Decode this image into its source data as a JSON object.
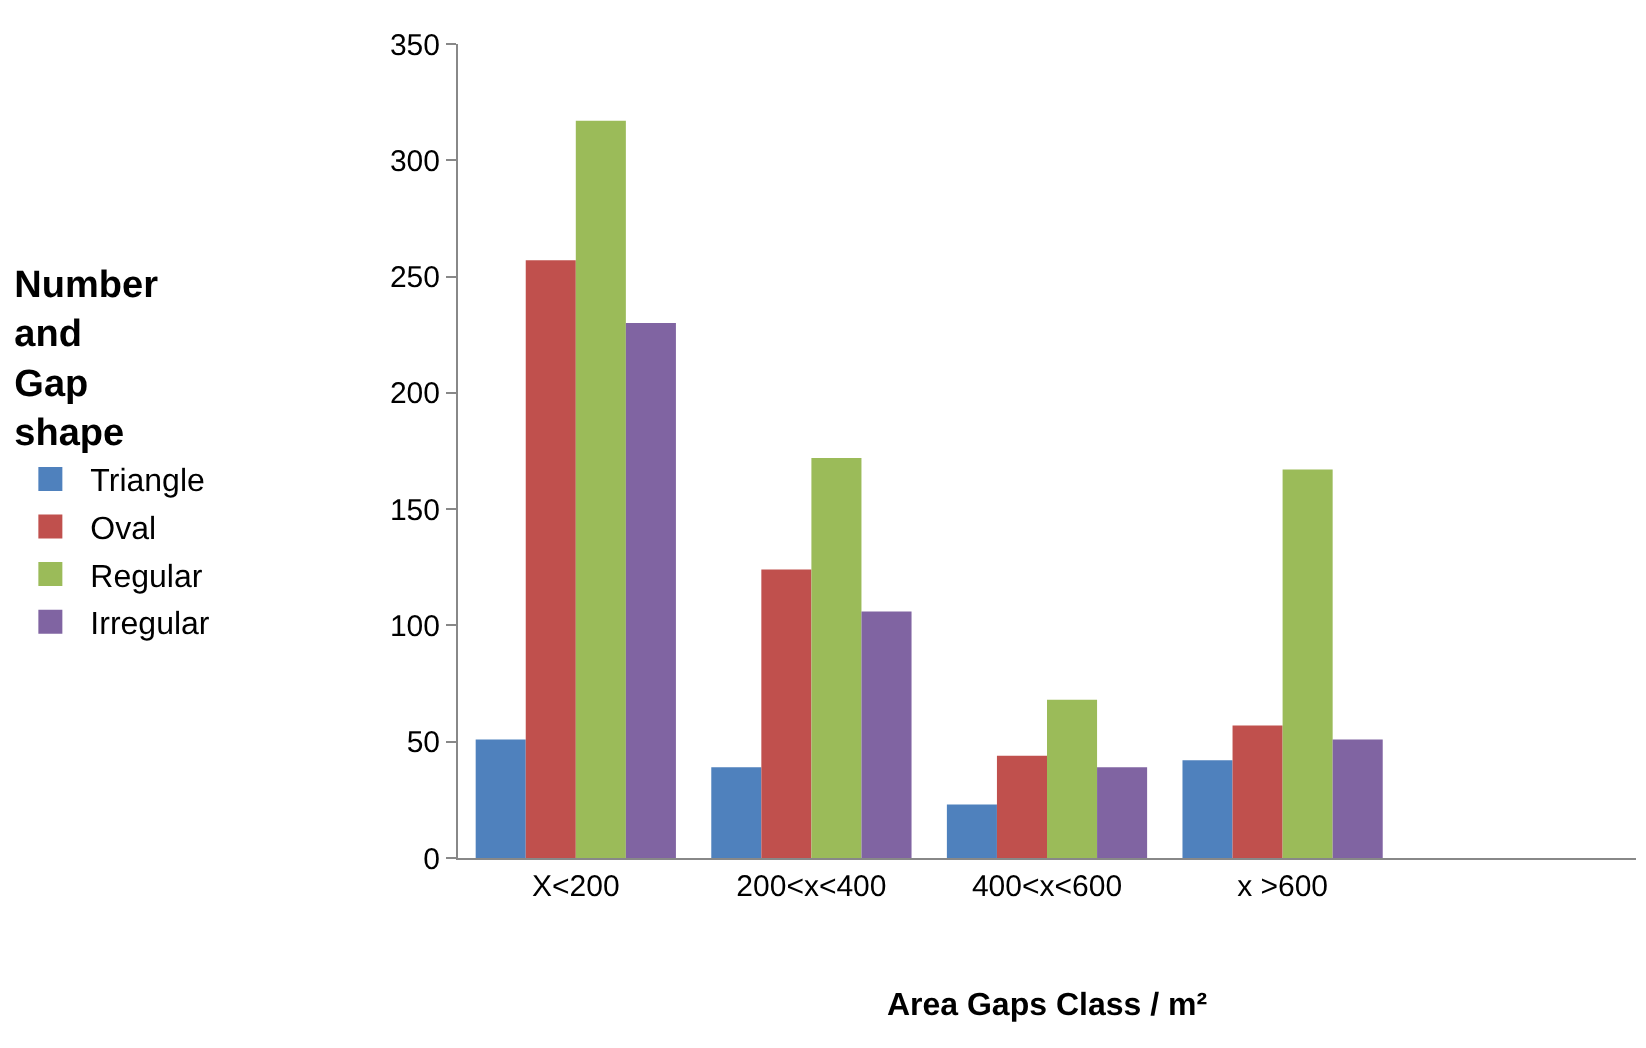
{
  "chart_data": {
    "type": "bar",
    "xlabel": "Area Gaps Class / m²",
    "legend_title": "Number and Gap shape",
    "categories": [
      "X<200",
      "200<x<400",
      "400<x<600",
      "x >600",
      null
    ],
    "series": [
      {
        "name": "Triangle",
        "color": "#4f81bd",
        "values": [
          51,
          39,
          23,
          42,
          null
        ]
      },
      {
        "name": "Oval",
        "color": "#c0504d",
        "values": [
          257,
          124,
          44,
          57,
          null
        ]
      },
      {
        "name": "Regular",
        "color": "#9bbb59",
        "values": [
          317,
          172,
          68,
          167,
          null
        ]
      },
      {
        "name": "Irregular",
        "color": "#8064a2",
        "values": [
          230,
          106,
          39,
          51,
          null
        ]
      }
    ],
    "ylim": [
      0,
      350
    ],
    "yticks": [
      0,
      50,
      100,
      150,
      200,
      250,
      300,
      350
    ],
    "grid": false,
    "legend": "left"
  }
}
